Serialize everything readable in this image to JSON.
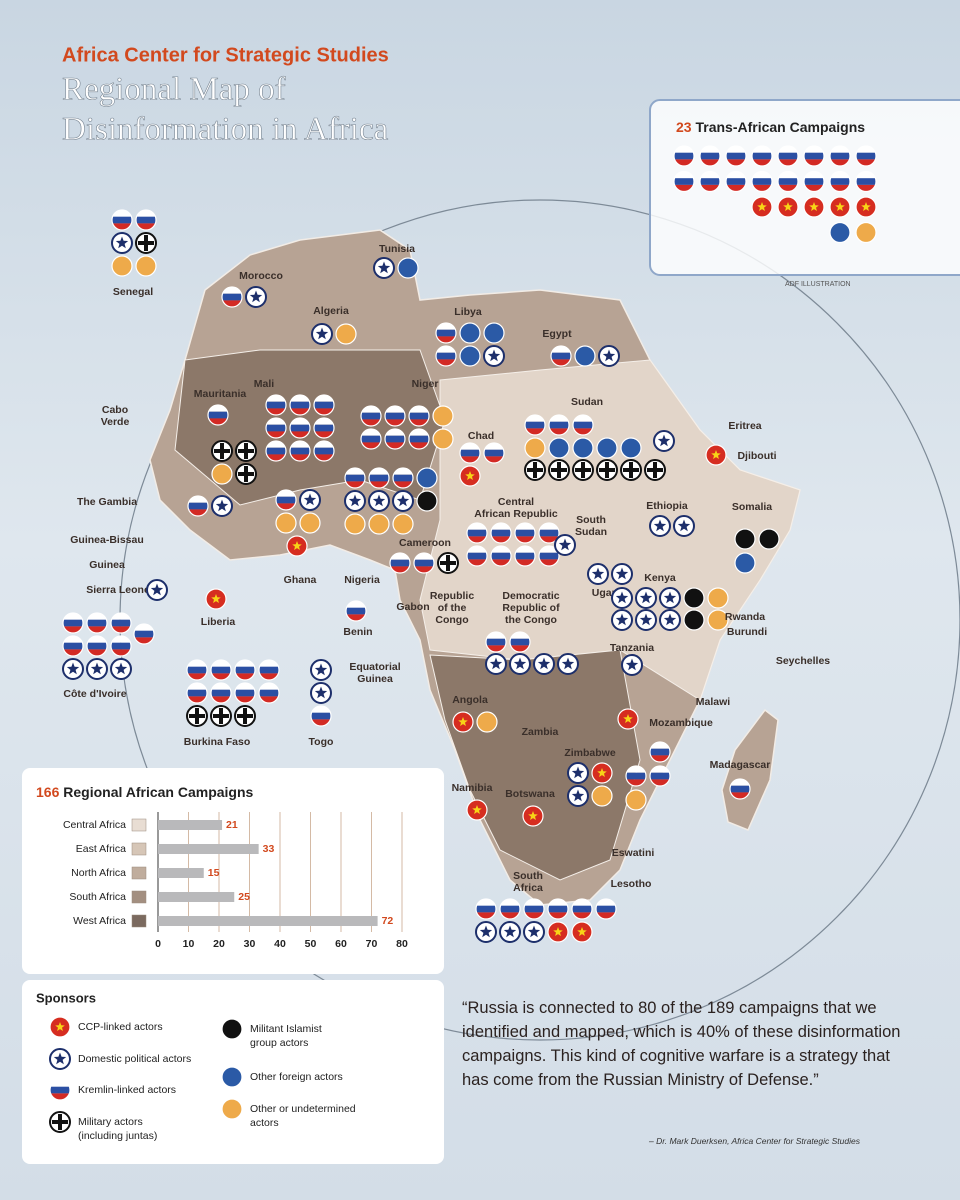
{
  "header": {
    "org": "Africa Center for Strategic Studies",
    "title_lines": [
      "Regional Map of",
      "Disinformation in Africa"
    ]
  },
  "credit": "ADF ILLUSTRATION",
  "trans_african": {
    "count": 23,
    "title": "Trans-African Campaigns",
    "icons": [
      [
        2,
        2,
        2,
        2,
        2,
        2,
        2,
        2
      ],
      [
        2,
        2,
        2,
        2,
        2,
        2,
        2,
        2
      ],
      [
        0,
        0,
        0,
        0,
        0
      ],
      [
        5,
        6
      ]
    ]
  },
  "chart_data": {
    "type": "bar",
    "orientation": "horizontal",
    "total": 166,
    "title": "Regional African Campaigns",
    "categories": [
      "Central Africa",
      "East Africa",
      "North Africa",
      "South Africa",
      "West Africa"
    ],
    "values": [
      21,
      33,
      15,
      25,
      72
    ],
    "swatch_colors": [
      "#e8ddd3",
      "#d6c6b7",
      "#c0ad9d",
      "#a38f80",
      "#7b6a5f"
    ],
    "bar_color": "#b9b9bb",
    "label_color": "#d2491e",
    "xlim": [
      0,
      80
    ],
    "xticks": [
      0,
      10,
      20,
      30,
      40,
      50,
      60,
      70,
      80
    ],
    "grid": true
  },
  "sponsors_title": "Sponsors",
  "sponsors": [
    {
      "label": [
        "CCP-linked actors"
      ]
    },
    {
      "label": [
        "Domestic political actors"
      ]
    },
    {
      "label": [
        "Kremlin-linked actors"
      ]
    },
    {
      "label": [
        "Military actors",
        "(including juntas)"
      ]
    },
    {
      "label": [
        "Militant Islamist",
        "group actors"
      ]
    },
    {
      "label": [
        "Other foreign actors"
      ]
    },
    {
      "label": [
        "Other or undetermined",
        "actors"
      ]
    }
  ],
  "countries": [
    {
      "label": [
        "Senegal"
      ],
      "icons": [
        [
          2,
          2,
          1,
          3,
          6,
          6
        ]
      ]
    },
    {
      "label": [
        "Morocco"
      ],
      "icons": [
        [
          2,
          1
        ]
      ]
    },
    {
      "label": [
        "Tunisia"
      ],
      "icons": [
        [
          1,
          5
        ]
      ]
    },
    {
      "label": [
        "Algeria"
      ],
      "icons": [
        [
          1,
          6
        ]
      ]
    },
    {
      "label": [
        "Libya"
      ],
      "icons": [
        [
          2,
          5,
          5,
          2,
          5,
          1
        ]
      ]
    },
    {
      "label": [
        "Egypt"
      ],
      "icons": [
        [
          2,
          5,
          1
        ]
      ]
    },
    {
      "label": [
        "Mauritania"
      ],
      "icons": [
        [
          2
        ]
      ]
    },
    {
      "label": [
        "Mali"
      ],
      "icons": [
        [
          2,
          2,
          2,
          2,
          2,
          2,
          2,
          2,
          2
        ],
        [
          3,
          3,
          6,
          3
        ]
      ]
    },
    {
      "label": [
        "Niger"
      ],
      "icons": [
        [
          2,
          2,
          2,
          6,
          2,
          2,
          2,
          6
        ]
      ]
    },
    {
      "label": [
        "Chad"
      ],
      "icons": [
        [
          2,
          2,
          0
        ]
      ]
    },
    {
      "label": [
        "Sudan"
      ],
      "icons": [
        [
          2,
          2,
          2
        ],
        [
          6,
          5,
          5,
          5,
          5
        ],
        [
          3,
          3,
          3,
          3,
          3,
          3
        ]
      ]
    },
    {
      "label": [
        "Eritrea"
      ],
      "icons": [
        [
          1
        ]
      ]
    },
    {
      "label": [
        "Djibouti"
      ],
      "icons": [
        [
          0
        ]
      ]
    },
    {
      "label": [
        "Ethiopia"
      ],
      "icons": [
        [
          1,
          1
        ]
      ]
    },
    {
      "label": [
        "Somalia"
      ],
      "icons": [
        [
          4,
          4
        ],
        [
          5
        ]
      ]
    },
    {
      "label": [
        "Central",
        "African Republic"
      ],
      "icons": [
        [
          2,
          2,
          2,
          2,
          2,
          2,
          2,
          2
        ],
        [
          1
        ]
      ]
    },
    {
      "label": [
        "South",
        "Sudan"
      ]
    },
    {
      "label": [
        "Cameroon"
      ],
      "icons": [
        [
          2,
          2,
          3
        ]
      ]
    },
    {
      "label": [
        "Nigeria"
      ],
      "icons": [
        [
          2,
          2,
          2,
          5,
          1,
          1,
          1,
          4,
          6,
          6,
          6
        ]
      ]
    },
    {
      "label": [
        "Ghana"
      ],
      "icons": [
        [
          2,
          1,
          6,
          6
        ],
        [
          0
        ]
      ]
    },
    {
      "label": [
        "Cabo",
        "Verde"
      ]
    },
    {
      "label": [
        "The Gambia"
      ]
    },
    {
      "label": [
        "Guinea-Bissau"
      ],
      "icons": [
        [
          2,
          1
        ]
      ]
    },
    {
      "label": [
        "Guinea"
      ]
    },
    {
      "label": [
        "Sierra Leone"
      ],
      "icons": [
        [
          1
        ]
      ]
    },
    {
      "label": [
        "Liberia"
      ],
      "icons": [
        [
          0
        ]
      ]
    },
    {
      "label": [
        "Côte d'Ivoire"
      ],
      "icons": [
        [
          2,
          2,
          2,
          2,
          2,
          2,
          1,
          1,
          1
        ],
        [
          2
        ]
      ]
    },
    {
      "label": [
        "Burkina Faso"
      ],
      "icons": [
        [
          2,
          2,
          2,
          2,
          2,
          2,
          2,
          2,
          3,
          3,
          3
        ]
      ]
    },
    {
      "label": [
        "Togo"
      ],
      "icons": [
        [
          1,
          1,
          2
        ]
      ]
    },
    {
      "label": [
        "Benin"
      ],
      "icons": [
        [
          2
        ]
      ]
    },
    {
      "label": [
        "Gabon"
      ]
    },
    {
      "label": [
        "Republic",
        "of the",
        "Congo"
      ]
    },
    {
      "label": [
        "Democratic",
        "Republic of",
        "the Congo"
      ],
      "icons": [
        [
          2,
          2
        ],
        [
          1,
          1,
          1,
          1
        ]
      ]
    },
    {
      "label": [
        "Equatorial",
        "Guinea"
      ]
    },
    {
      "label": [
        "Uganda"
      ],
      "icons": [
        [
          1,
          1
        ]
      ]
    },
    {
      "label": [
        "Kenya"
      ],
      "icons": [
        [
          1,
          1,
          1,
          4,
          6
        ],
        [
          1,
          1,
          1,
          4,
          6
        ]
      ]
    },
    {
      "label": [
        "Rwanda"
      ]
    },
    {
      "label": [
        "Burundi"
      ]
    },
    {
      "label": [
        "Tanzania"
      ],
      "icons": [
        [
          1
        ]
      ]
    },
    {
      "label": [
        "Seychelles"
      ]
    },
    {
      "label": [
        "Angola"
      ],
      "icons": [
        [
          0,
          6
        ]
      ]
    },
    {
      "label": [
        "Malawi"
      ]
    },
    {
      "label": [
        "Zambia"
      ]
    },
    {
      "label": [
        "Mozambique"
      ],
      "icons": [
        [
          0
        ],
        [
          2
        ],
        [
          2,
          2
        ],
        [
          6
        ]
      ]
    },
    {
      "label": [
        "Zimbabwe"
      ],
      "icons": [
        [
          1,
          0,
          1,
          6
        ]
      ]
    },
    {
      "label": [
        "Madagascar"
      ],
      "icons": [
        [
          2
        ]
      ]
    },
    {
      "label": [
        "Namibia"
      ],
      "icons": [
        [
          0
        ]
      ]
    },
    {
      "label": [
        "Botswana"
      ],
      "icons": [
        [
          0
        ]
      ]
    },
    {
      "label": [
        "Eswatini"
      ]
    },
    {
      "label": [
        "South",
        "Africa"
      ],
      "icons": [
        [
          2,
          2,
          2,
          2,
          2,
          2
        ],
        [
          1,
          1,
          1,
          0,
          0
        ]
      ]
    },
    {
      "label": [
        "Lesotho"
      ]
    }
  ],
  "quote": {
    "text": "“Russia is connected to 80 of the 189 campaigns that we identified and mapped, which is 40% of these disinformation campaigns. This kind of cognitive warfare is a strategy that has come from the Russian Ministry of Defense.”",
    "attribution": "– Dr. Mark Duerksen, Africa Center for Strategic Studies"
  }
}
